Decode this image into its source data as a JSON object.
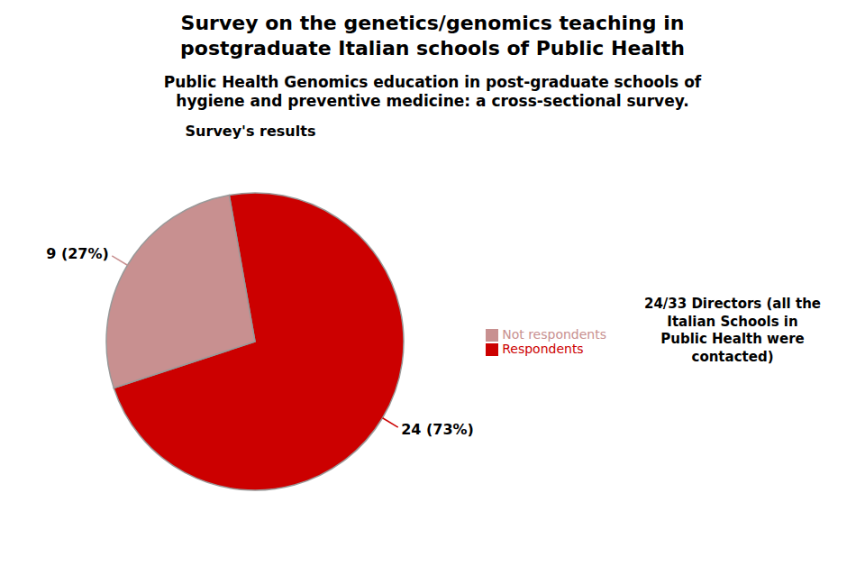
{
  "title": "Survey on the genetics/genomics teaching in\npostgraduate Italian schools of Public Health",
  "subtitle": "Public Health Genomics education in post-graduate schools of\nhygiene and preventive medicine: a cross-sectional survey.",
  "chart_data": {
    "type": "pie",
    "title": "Survey's results",
    "categories": [
      "Respondents",
      "Not respondents"
    ],
    "values": [
      24,
      9
    ],
    "value_labels": [
      "24 (73%)",
      "9 (27%)"
    ],
    "colors": [
      "#cc0000",
      "#c89090"
    ],
    "data_labels": true,
    "legend": "right",
    "annotations": [
      "24/33 Directors  (all the\nItalian Schools in\nPublic Health were\ncontacted)"
    ]
  }
}
